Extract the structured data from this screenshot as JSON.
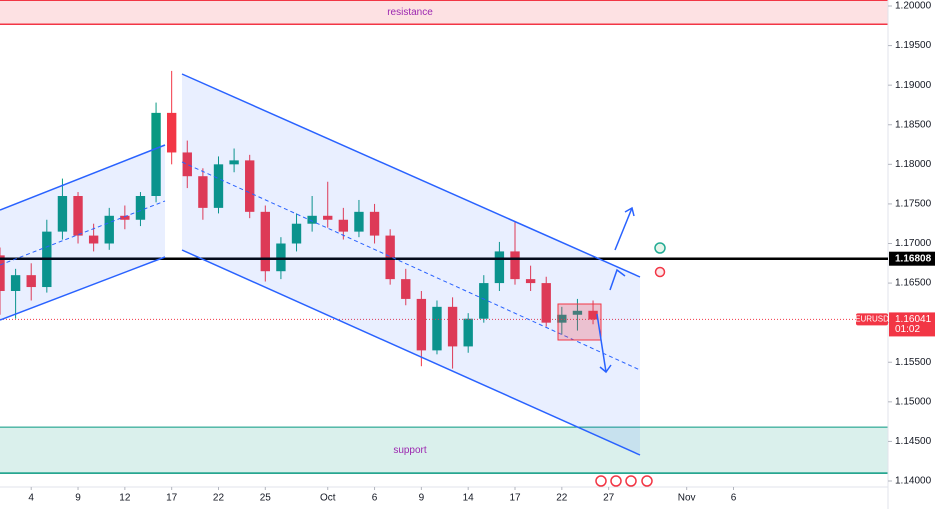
{
  "chart_data": {
    "type": "candlestick",
    "symbol": "EURUSD",
    "x": [
      1,
      2,
      3,
      4,
      5,
      6,
      7,
      8,
      9,
      10,
      11,
      12,
      13,
      14,
      15,
      16,
      17,
      18,
      19,
      20,
      21,
      22,
      23,
      24,
      25,
      26,
      27,
      28,
      29,
      30,
      31,
      32,
      33,
      34,
      35,
      36,
      37,
      38,
      39
    ],
    "open": [
      1.1685,
      1.164,
      1.166,
      1.1645,
      1.1715,
      1.176,
      1.171,
      1.17,
      1.1735,
      1.173,
      1.176,
      1.1865,
      1.1815,
      1.1785,
      1.1745,
      1.18,
      1.1805,
      1.174,
      1.1665,
      1.17,
      1.1725,
      1.1735,
      1.173,
      1.1715,
      1.174,
      1.171,
      1.1655,
      1.163,
      1.1565,
      1.162,
      1.157,
      1.1605,
      1.165,
      1.169,
      1.1655,
      1.165,
      1.16,
      1.161,
      1.1615
    ],
    "high": [
      1.1695,
      1.1668,
      1.1675,
      1.173,
      1.1782,
      1.1765,
      1.1725,
      1.1745,
      1.1748,
      1.1765,
      1.1878,
      1.1918,
      1.183,
      1.1795,
      1.181,
      1.182,
      1.1812,
      1.1748,
      1.1708,
      1.1738,
      1.176,
      1.1778,
      1.1745,
      1.1755,
      1.175,
      1.1718,
      1.1668,
      1.164,
      1.1628,
      1.1632,
      1.1612,
      1.166,
      1.1702,
      1.1728,
      1.1672,
      1.1658,
      1.162,
      1.163,
      1.1628
    ],
    "low": [
      1.161,
      1.1605,
      1.1628,
      1.1638,
      1.1705,
      1.17,
      1.169,
      1.1692,
      1.1718,
      1.1722,
      1.1752,
      1.18,
      1.177,
      1.173,
      1.1738,
      1.179,
      1.1732,
      1.1652,
      1.1655,
      1.169,
      1.1715,
      1.172,
      1.1705,
      1.1708,
      1.17,
      1.1648,
      1.1622,
      1.1545,
      1.156,
      1.1542,
      1.1562,
      1.16,
      1.164,
      1.1648,
      1.164,
      1.1595,
      1.1585,
      1.159,
      1.1598
    ],
    "close": [
      1.164,
      1.166,
      1.1645,
      1.1715,
      1.176,
      1.171,
      1.17,
      1.1735,
      1.173,
      1.176,
      1.1865,
      1.1815,
      1.1785,
      1.1745,
      1.18,
      1.1805,
      1.174,
      1.1665,
      1.17,
      1.1725,
      1.1735,
      1.173,
      1.1715,
      1.174,
      1.171,
      1.1655,
      1.163,
      1.1565,
      1.162,
      1.157,
      1.1605,
      1.165,
      1.169,
      1.1655,
      1.165,
      1.16,
      1.161,
      1.1615,
      1.1604
    ],
    "up_color": "#089981",
    "down_color": "#f23645",
    "xlim": [
      1,
      57.9
    ],
    "xticks": [
      {
        "value": 3,
        "label": "4"
      },
      {
        "value": 6,
        "label": "9"
      },
      {
        "value": 9,
        "label": "12"
      },
      {
        "value": 12,
        "label": "17"
      },
      {
        "value": 15,
        "label": "22"
      },
      {
        "value": 18,
        "label": "25"
      },
      {
        "value": 22,
        "label": "Oct"
      },
      {
        "value": 25,
        "label": "6"
      },
      {
        "value": 28,
        "label": "9"
      },
      {
        "value": 31,
        "label": "14"
      },
      {
        "value": 34,
        "label": "17"
      },
      {
        "value": 37,
        "label": "22"
      },
      {
        "value": 40,
        "label": "27"
      },
      {
        "value": 45,
        "label": "Nov"
      },
      {
        "value": 48,
        "label": "6"
      }
    ],
    "ylim": [
      1.14,
      1.2
    ],
    "yticks": [
      {
        "value": 1.2,
        "label": "1.20000"
      },
      {
        "value": 1.195,
        "label": "1.19500"
      },
      {
        "value": 1.19,
        "label": "1.19000"
      },
      {
        "value": 1.185,
        "label": "1.18500"
      },
      {
        "value": 1.18,
        "label": "1.18000"
      },
      {
        "value": 1.175,
        "label": "1.17500"
      },
      {
        "value": 1.17,
        "label": "1.17000"
      },
      {
        "value": 1.165,
        "label": "1.16500"
      },
      {
        "value": 1.16,
        "label": "1.16000"
      },
      {
        "value": 1.155,
        "label": "1.15500"
      },
      {
        "value": 1.15,
        "label": "1.15000"
      },
      {
        "value": 1.145,
        "label": "1.14500"
      },
      {
        "value": 1.14,
        "label": "1.14000"
      }
    ],
    "grid": false,
    "zones": [
      {
        "label": "resistance",
        "range": [
          1.1977,
          1.2007
        ],
        "color": "#f23645"
      },
      {
        "label": "support",
        "range": [
          1.141,
          1.1468
        ],
        "color": "#089981"
      }
    ],
    "level": {
      "value": 1.16808,
      "label": "1.16808"
    },
    "last_price": {
      "value": 1.16041,
      "label": "1.16041",
      "countdown": "01:02"
    }
  }
}
